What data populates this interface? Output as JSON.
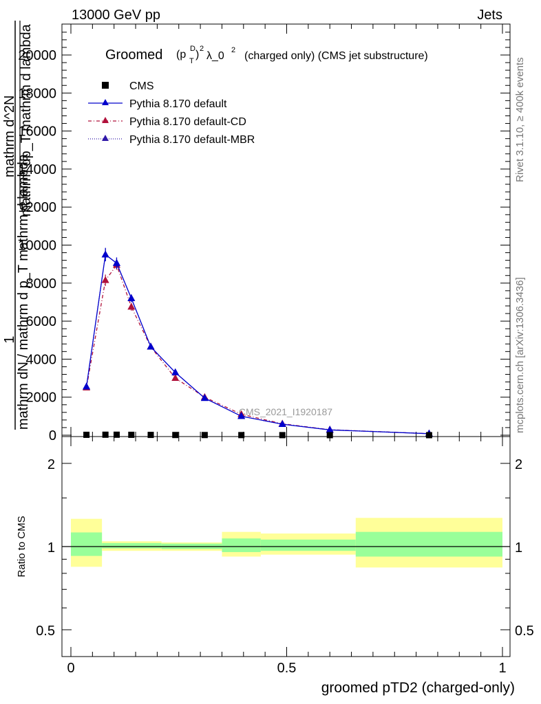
{
  "header": {
    "left": "13000 GeV pp",
    "right": "Jets"
  },
  "side_labels": {
    "rivet": "Rivet 3.1.10, ≥ 400k events",
    "mcplots": "mcplots.cern.ch [arXiv:1306.3436]"
  },
  "watermark": "CMS_2021_I1920187",
  "colors": {
    "default": "#0000cc",
    "cd": "#b0103a",
    "mbr": "#3018a8",
    "band_outer": "#ffff99",
    "band_inner": "#99ff99",
    "data": "#000000"
  },
  "chart_data": [
    {
      "type": "line",
      "title": "Groomed (p_T^D)^2 λ_0^2 (charged only) (CMS jet substructure)",
      "title_parts": {
        "t1": "Groomed",
        "t2": "(p",
        "t3": "D",
        "t4": "T",
        "t5": ")",
        "t6": "2",
        "t7": "λ_0",
        "t8": "2",
        "t9": "(charged only) (CMS jet substructure)"
      },
      "ylabel_lines": [
        "1",
        "mathrm dN / mathrm d p_T mathrm d lambda",
        "mathrm d^2N",
        "mathrm dp_T mathrm d lambda"
      ],
      "xlim": [
        0,
        1
      ],
      "ylim": [
        0,
        21500
      ],
      "y_ticks": [
        0,
        2000,
        4000,
        6000,
        8000,
        10000,
        12000,
        14000,
        16000,
        18000,
        20000
      ],
      "y_tick_labels": [
        "0",
        "2000",
        "4000",
        "6000",
        "8000",
        "10000",
        "12000",
        "14000",
        "16000",
        "18000",
        "20000"
      ],
      "legend_position": "top-left",
      "legend": [
        "CMS",
        "Pythia 8.170 default",
        "Pythia 8.170 default-CD",
        "Pythia 8.170 default-MBR"
      ],
      "series": [
        {
          "name": "CMS",
          "style": "markers",
          "x": [
            0.036,
            0.08,
            0.106,
            0.14,
            0.185,
            0.242,
            0.31,
            0.395,
            0.49,
            0.6,
            0.83
          ],
          "y": [
            20,
            25,
            25,
            20,
            15,
            10,
            8,
            5,
            3,
            2,
            1
          ]
        },
        {
          "name": "Pythia 8.170 default",
          "style": "solid",
          "x": [
            0.036,
            0.08,
            0.106,
            0.14,
            0.185,
            0.242,
            0.31,
            0.395,
            0.49,
            0.6,
            0.83
          ],
          "y": [
            2550,
            9500,
            9050,
            7200,
            4650,
            3300,
            1950,
            1000,
            580,
            280,
            80
          ],
          "err": [
            0,
            350,
            300,
            200,
            100,
            100,
            60,
            40,
            25,
            20,
            10
          ]
        },
        {
          "name": "Pythia 8.170 default-CD",
          "style": "dashdot",
          "x": [
            0.036,
            0.08,
            0.106,
            0.14,
            0.185,
            0.242,
            0.31,
            0.395,
            0.49,
            0.6,
            0.83
          ],
          "y": [
            2500,
            8150,
            8950,
            6750,
            4650,
            3000,
            2000,
            1100,
            600,
            290,
            80
          ],
          "err": [
            0,
            300,
            250,
            200,
            100,
            80,
            60,
            40,
            25,
            20,
            10
          ]
        },
        {
          "name": "Pythia 8.170 default-MBR",
          "style": "dotted",
          "x": [
            0.036,
            0.08,
            0.106,
            0.14,
            0.185,
            0.242,
            0.31,
            0.395,
            0.49,
            0.6,
            0.83
          ],
          "y": [
            2550,
            9500,
            9050,
            7200,
            4650,
            3300,
            1950,
            1000,
            580,
            280,
            80
          ],
          "err": [
            0,
            350,
            300,
            200,
            100,
            100,
            60,
            40,
            25,
            20,
            10
          ]
        }
      ]
    },
    {
      "type": "area",
      "ylabel": "Ratio to CMS",
      "xlabel": "groomed pTD2 (charged-only)",
      "xlim": [
        0,
        1
      ],
      "ylim": [
        0.38,
        2.4
      ],
      "yscale": "log",
      "x_ticks": [
        0,
        0.5,
        1
      ],
      "x_tick_labels": [
        "0",
        "0.5",
        "1"
      ],
      "y_ticks": [
        0.5,
        1,
        2
      ],
      "y_tick_labels": [
        "0.5",
        "1",
        "2"
      ],
      "reference_line": 1,
      "bands": [
        {
          "x0": 0.0,
          "x1": 0.072,
          "outer": [
            0.845,
            1.26
          ],
          "inner": [
            0.925,
            1.125
          ]
        },
        {
          "x0": 0.072,
          "x1": 0.21,
          "outer": [
            0.965,
            1.045
          ],
          "inner": [
            0.985,
            1.03
          ]
        },
        {
          "x0": 0.21,
          "x1": 0.35,
          "outer": [
            0.965,
            1.035
          ],
          "inner": [
            0.98,
            1.025
          ]
        },
        {
          "x0": 0.35,
          "x1": 0.44,
          "outer": [
            0.92,
            1.13
          ],
          "inner": [
            0.955,
            1.07
          ]
        },
        {
          "x0": 0.44,
          "x1": 0.66,
          "outer": [
            0.935,
            1.115
          ],
          "inner": [
            0.965,
            1.06
          ]
        },
        {
          "x0": 0.66,
          "x1": 1.0,
          "outer": [
            0.84,
            1.27
          ],
          "inner": [
            0.92,
            1.13
          ]
        }
      ]
    }
  ]
}
